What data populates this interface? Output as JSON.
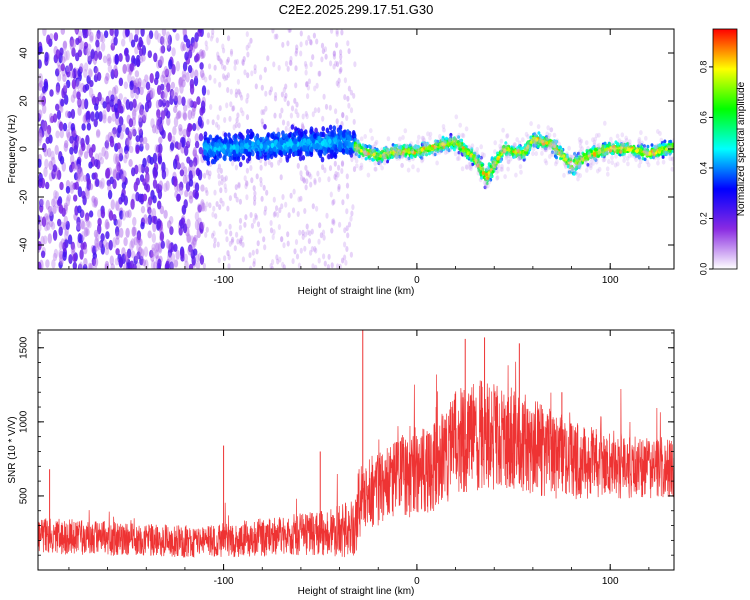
{
  "title": "C2E2.2025.299.17.51.G30",
  "chart_data": [
    {
      "type": "heatmap",
      "name": "spectrogram",
      "xlabel": "Height of straight line (km)",
      "ylabel": "Frequency (Hz)",
      "xlim": [
        -196,
        133
      ],
      "ylim": [
        -50,
        50
      ],
      "xticks": [
        -100,
        0,
        100
      ],
      "xtick_labels": [
        "-100",
        "0",
        "100"
      ],
      "yticks": [
        -40,
        -20,
        0,
        20,
        40
      ],
      "ytick_labels": [
        "-40",
        "-20",
        "0",
        "20",
        "40"
      ],
      "colorbar": {
        "label": "Normalized spectral amplitude",
        "range": [
          0,
          0.95
        ],
        "ticks": [
          0.0,
          0.2,
          0.4,
          0.6,
          0.8
        ],
        "tick_labels": [
          "0.0",
          "0.2",
          "0.4",
          "0.6",
          "0.8"
        ],
        "colormap": [
          "#ffffff",
          "#8a2be2",
          "#0000ff",
          "#00ffff",
          "#00ff00",
          "#ffff00",
          "#ff0000"
        ]
      },
      "regions": [
        {
          "x_range": [
            -196,
            -110
          ],
          "description_level": "noise",
          "amplitude": 0.1
        },
        {
          "x_range": [
            -110,
            -32
          ],
          "description_level": "band",
          "amplitude": 0.2
        },
        {
          "x_range": [
            -32,
            133
          ],
          "description_level": "signal",
          "amplitude": 0.6
        }
      ],
      "signal_center_hz": [
        [
          -110,
          0
        ],
        [
          -60,
          2
        ],
        [
          -35,
          3
        ],
        [
          -28,
          -1
        ],
        [
          -20,
          -3
        ],
        [
          -10,
          -1
        ],
        [
          0,
          -1
        ],
        [
          10,
          1
        ],
        [
          20,
          3
        ],
        [
          30,
          -4
        ],
        [
          36,
          -12
        ],
        [
          45,
          0
        ],
        [
          55,
          -2
        ],
        [
          60,
          4
        ],
        [
          70,
          2
        ],
        [
          80,
          -7
        ],
        [
          90,
          -2
        ],
        [
          100,
          0
        ],
        [
          110,
          0
        ],
        [
          120,
          -2
        ],
        [
          133,
          1
        ]
      ]
    },
    {
      "type": "line",
      "name": "snr",
      "xlabel": "Height of straight line (km)",
      "ylabel": "SNR (10 * V/V)",
      "xlim": [
        -196,
        133
      ],
      "ylim": [
        0,
        1620
      ],
      "xticks": [
        -100,
        0,
        100
      ],
      "xtick_labels": [
        "-100",
        "0",
        "100"
      ],
      "yticks": [
        500,
        1000,
        1500
      ],
      "ytick_labels": [
        "500",
        "1000",
        "1500"
      ],
      "color": "#ee3333",
      "envelope_x": [
        -196,
        -170,
        -140,
        -110,
        -80,
        -50,
        -32,
        -30,
        -25,
        -15,
        -5,
        10,
        20,
        35,
        50,
        70,
        90,
        110,
        133
      ],
      "envelope_mean": [
        230,
        220,
        200,
        190,
        220,
        250,
        280,
        450,
        520,
        580,
        650,
        700,
        860,
        920,
        880,
        780,
        720,
        700,
        690
      ],
      "envelope_spread": [
        120,
        120,
        110,
        110,
        130,
        150,
        200,
        250,
        250,
        250,
        300,
        300,
        360,
        380,
        350,
        300,
        250,
        220,
        200
      ],
      "spikes": [
        {
          "x": -28,
          "y": 1620
        },
        {
          "x": -100,
          "y": 840
        },
        {
          "x": -50,
          "y": 800
        },
        {
          "x": 10,
          "y": 1100
        },
        {
          "x": 25,
          "y": 1560
        },
        {
          "x": 35,
          "y": 1570
        },
        {
          "x": 53,
          "y": 1530
        },
        {
          "x": 75,
          "y": 1200
        },
        {
          "x": -190,
          "y": 680
        }
      ]
    }
  ]
}
